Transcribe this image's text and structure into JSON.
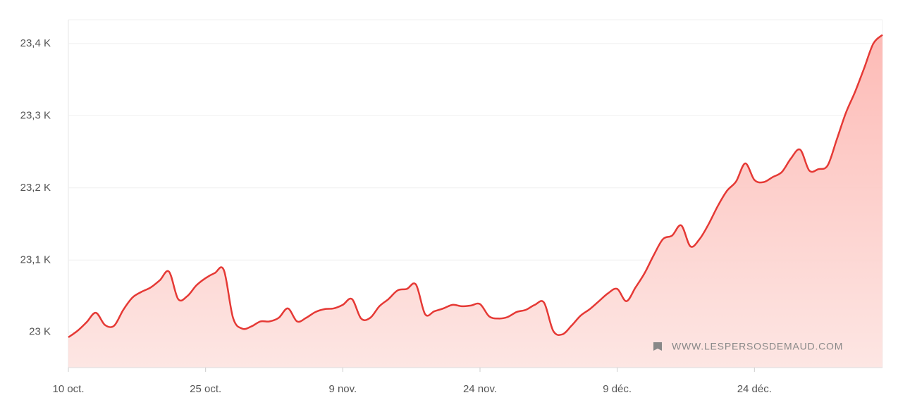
{
  "chart_data": {
    "type": "area",
    "categories": [
      "10 oct.",
      null,
      null,
      null,
      null,
      null,
      null,
      null,
      null,
      null,
      null,
      null,
      null,
      null,
      null,
      "25 oct.",
      null,
      null,
      null,
      null,
      null,
      null,
      null,
      null,
      null,
      null,
      null,
      null,
      null,
      null,
      "9 nov.",
      null,
      null,
      null,
      null,
      null,
      null,
      null,
      null,
      null,
      null,
      null,
      null,
      null,
      null,
      "24 nov.",
      null,
      null,
      null,
      null,
      null,
      null,
      null,
      null,
      null,
      null,
      null,
      null,
      null,
      null,
      "9 déc.",
      null,
      null,
      null,
      null,
      null,
      null,
      null,
      null,
      null,
      null,
      null,
      null,
      null,
      null,
      "24 déc.",
      null,
      null,
      null,
      null,
      null,
      null,
      null,
      null,
      null,
      null,
      null,
      null,
      null,
      null
    ],
    "values": [
      22993,
      23002,
      23014,
      23027,
      23010,
      23009,
      23031,
      23048,
      23056,
      23062,
      23072,
      23084,
      23046,
      23050,
      23065,
      23075,
      23082,
      23086,
      23020,
      23005,
      23008,
      23015,
      23015,
      23020,
      23033,
      23015,
      23020,
      23028,
      23032,
      23033,
      23038,
      23046,
      23019,
      23020,
      23036,
      23046,
      23058,
      23060,
      23066,
      23025,
      23029,
      23033,
      23038,
      23036,
      23037,
      23039,
      23022,
      23019,
      23021,
      23028,
      23031,
      23038,
      23041,
      23002,
      22997,
      23009,
      23023,
      23032,
      23043,
      23054,
      23060,
      23043,
      23062,
      23082,
      23107,
      23129,
      23134,
      23148,
      23119,
      23129,
      23150,
      23175,
      23196,
      23209,
      23234,
      23211,
      23208,
      23215,
      23222,
      23241,
      23253,
      23224,
      23226,
      23231,
      23267,
      23304,
      23333,
      23366,
      23400,
      23412
    ],
    "color": "#e53935",
    "ylim": [
      22951,
      23433
    ],
    "yticks": [
      {
        "value": 23000,
        "label": "23 K"
      },
      {
        "value": 23100,
        "label": "23,1 K"
      },
      {
        "value": 23200,
        "label": "23,2 K"
      },
      {
        "value": 23300,
        "label": "23,3 K"
      },
      {
        "value": 23400,
        "label": "23,4 K"
      }
    ],
    "grid": true,
    "watermark": "WWW.LESPERSOSDEMAUD.COM"
  }
}
